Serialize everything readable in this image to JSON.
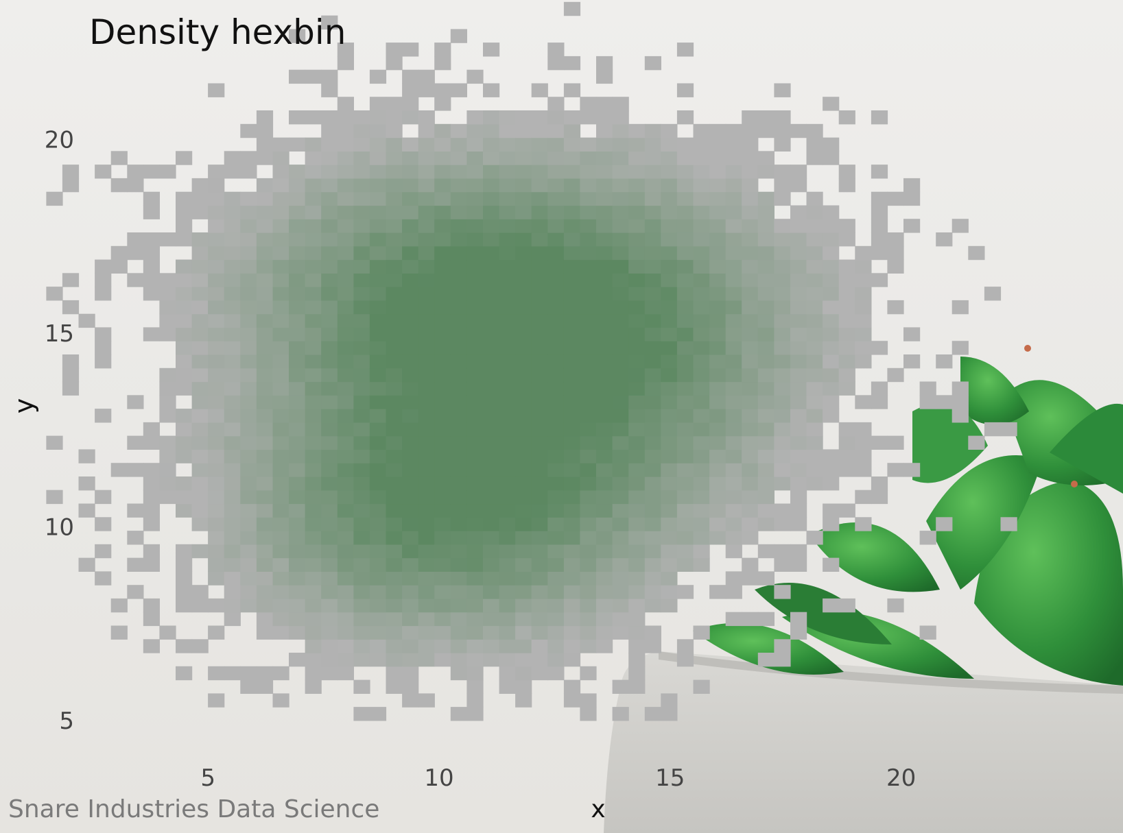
{
  "chart_data": {
    "type": "heatmap",
    "subtype": "density-hexbin",
    "title": "Density hexbin",
    "xlabel": "x",
    "ylabel": "y",
    "caption": "Snare Industries Data Science",
    "x_ticks": [
      "5",
      "10",
      "15",
      "20"
    ],
    "x_tick_values": [
      5,
      10,
      15,
      20
    ],
    "y_ticks": [
      "5",
      "10",
      "15",
      "20"
    ],
    "y_tick_values": [
      5,
      10,
      15,
      20
    ],
    "xlim": [
      0.5,
      24.8
    ],
    "ylim": [
      3.6,
      23.6
    ],
    "grid": false,
    "legend": "none",
    "bin_size": 0.35,
    "density_clusters": [
      {
        "center_x": 10.0,
        "center_y": 10.3,
        "spread_x": 3.2,
        "spread_y": 2.4,
        "weight": 1.0
      },
      {
        "center_x": 10.0,
        "center_y": 16.0,
        "spread_x": 3.4,
        "spread_y": 2.6,
        "weight": 0.95
      },
      {
        "center_x": 14.5,
        "center_y": 14.8,
        "spread_x": 3.0,
        "spread_y": 3.0,
        "weight": 0.7
      }
    ],
    "colors": {
      "low": "#b3b3b3",
      "high": "#3f7a46",
      "background": "#ebe9e6",
      "text": "#111111",
      "tick_text": "#444444",
      "caption_text": "#7a7a7a"
    },
    "background_image": "succulent-plant-in-concrete-pot"
  }
}
